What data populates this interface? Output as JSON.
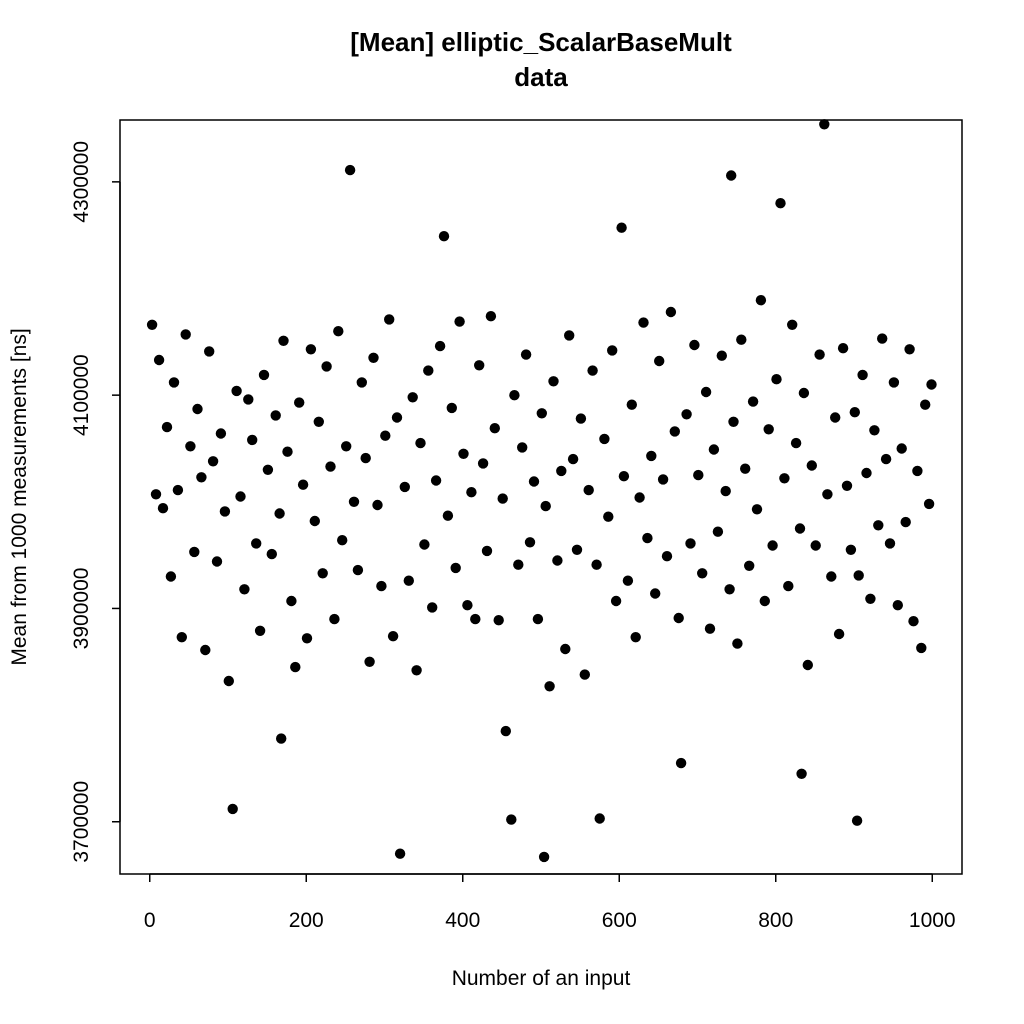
{
  "chart_data": {
    "type": "scatter",
    "title": "[Mean] elliptic_ScalarBaseMult",
    "subtitle": "data",
    "xlabel": "Number of an input",
    "ylabel": "Mean from 1000 measurements [ns]",
    "xlim": [
      -38,
      1038
    ],
    "ylim": [
      3651000,
      4358000
    ],
    "xticks": [
      0,
      200,
      400,
      600,
      800,
      1000
    ],
    "xtick_labels": [
      "0",
      "200",
      "400",
      "600",
      "800",
      "1000"
    ],
    "yticks": [
      3700000,
      3900000,
      4100000,
      4300000
    ],
    "ytick_labels": [
      "3700000",
      "3900000",
      "4100000",
      "4300000"
    ],
    "grid": false,
    "legend": "none",
    "point_color": "#000000",
    "notable_points": [
      [
        256,
        4311000
      ],
      [
        504,
        3667000
      ],
      [
        862,
        4354000
      ],
      [
        904,
        3701000
      ],
      [
        743,
        4306000
      ],
      [
        806,
        4280000
      ],
      [
        603,
        4257000
      ],
      [
        376,
        4249000
      ],
      [
        320,
        3670000
      ],
      [
        106,
        3712000
      ],
      [
        462,
        3702000
      ],
      [
        575,
        3703000
      ],
      [
        168,
        3778000
      ],
      [
        455,
        3785000
      ],
      [
        833,
        3745000
      ],
      [
        679,
        3755000
      ]
    ],
    "series": [
      {
        "points": [
          [
            3,
            4166000
          ],
          [
            8,
            4007000
          ],
          [
            12,
            4133000
          ],
          [
            17,
            3994000
          ],
          [
            22,
            4070000
          ],
          [
            27,
            3930000
          ],
          [
            31,
            4112000
          ],
          [
            36,
            4011000
          ],
          [
            41,
            3873000
          ],
          [
            46,
            4157000
          ],
          [
            52,
            4052000
          ],
          [
            57,
            3953000
          ],
          [
            61,
            4087000
          ],
          [
            66,
            4023000
          ],
          [
            71,
            3861000
          ],
          [
            76,
            4141000
          ],
          [
            81,
            4038000
          ],
          [
            86,
            3944000
          ],
          [
            91,
            4064000
          ],
          [
            96,
            3991000
          ],
          [
            101,
            3832000
          ],
          [
            111,
            4104000
          ],
          [
            116,
            4005000
          ],
          [
            121,
            3918000
          ],
          [
            126,
            4096000
          ],
          [
            131,
            4058000
          ],
          [
            136,
            3961000
          ],
          [
            141,
            3879000
          ],
          [
            146,
            4119000
          ],
          [
            151,
            4030000
          ],
          [
            156,
            3951000
          ],
          [
            161,
            4081000
          ],
          [
            166,
            3989000
          ],
          [
            171,
            4151000
          ],
          [
            176,
            4047000
          ],
          [
            181,
            3907000
          ],
          [
            186,
            3845000
          ],
          [
            191,
            4093000
          ],
          [
            196,
            4016000
          ],
          [
            201,
            3872000
          ],
          [
            206,
            4143000
          ],
          [
            211,
            3982000
          ],
          [
            216,
            4075000
          ],
          [
            221,
            3933000
          ],
          [
            226,
            4127000
          ],
          [
            231,
            4033000
          ],
          [
            236,
            3890000
          ],
          [
            241,
            4160000
          ],
          [
            246,
            3964000
          ],
          [
            251,
            4052000
          ],
          [
            261,
            4000000
          ],
          [
            266,
            3936000
          ],
          [
            271,
            4112000
          ],
          [
            276,
            4041000
          ],
          [
            281,
            3850000
          ],
          [
            286,
            4135000
          ],
          [
            291,
            3997000
          ],
          [
            296,
            3921000
          ],
          [
            301,
            4062000
          ],
          [
            306,
            4171000
          ],
          [
            311,
            3874000
          ],
          [
            316,
            4079000
          ],
          [
            326,
            4014000
          ],
          [
            331,
            3926000
          ],
          [
            336,
            4098000
          ],
          [
            341,
            3842000
          ],
          [
            346,
            4055000
          ],
          [
            351,
            3960000
          ],
          [
            356,
            4123000
          ],
          [
            361,
            3901000
          ],
          [
            366,
            4020000
          ],
          [
            371,
            4146000
          ],
          [
            381,
            3987000
          ],
          [
            386,
            4088000
          ],
          [
            391,
            3938000
          ],
          [
            396,
            4169000
          ],
          [
            401,
            4045000
          ],
          [
            406,
            3903000
          ],
          [
            411,
            4009000
          ],
          [
            416,
            3890000
          ],
          [
            421,
            4128000
          ],
          [
            426,
            4036000
          ],
          [
            431,
            3954000
          ],
          [
            436,
            4174000
          ],
          [
            441,
            4069000
          ],
          [
            446,
            3889000
          ],
          [
            451,
            4003000
          ],
          [
            466,
            4100000
          ],
          [
            471,
            3941000
          ],
          [
            476,
            4051000
          ],
          [
            481,
            4138000
          ],
          [
            486,
            3962000
          ],
          [
            491,
            4019000
          ],
          [
            496,
            3890000
          ],
          [
            501,
            4083000
          ],
          [
            506,
            3996000
          ],
          [
            511,
            3827000
          ],
          [
            516,
            4113000
          ],
          [
            521,
            3945000
          ],
          [
            526,
            4029000
          ],
          [
            531,
            3862000
          ],
          [
            536,
            4156000
          ],
          [
            541,
            4040000
          ],
          [
            546,
            3955000
          ],
          [
            551,
            4078000
          ],
          [
            556,
            3838000
          ],
          [
            561,
            4011000
          ],
          [
            566,
            4123000
          ],
          [
            571,
            3941000
          ],
          [
            581,
            4059000
          ],
          [
            586,
            3986000
          ],
          [
            591,
            4142000
          ],
          [
            596,
            3907000
          ],
          [
            606,
            4024000
          ],
          [
            611,
            3926000
          ],
          [
            616,
            4091000
          ],
          [
            621,
            3873000
          ],
          [
            626,
            4004000
          ],
          [
            631,
            4168000
          ],
          [
            636,
            3966000
          ],
          [
            641,
            4043000
          ],
          [
            646,
            3914000
          ],
          [
            651,
            4132000
          ],
          [
            656,
            4021000
          ],
          [
            661,
            3949000
          ],
          [
            666,
            4178000
          ],
          [
            671,
            4066000
          ],
          [
            676,
            3891000
          ],
          [
            686,
            4082000
          ],
          [
            691,
            3961000
          ],
          [
            696,
            4147000
          ],
          [
            701,
            4025000
          ],
          [
            706,
            3933000
          ],
          [
            711,
            4103000
          ],
          [
            716,
            3881000
          ],
          [
            721,
            4049000
          ],
          [
            726,
            3972000
          ],
          [
            731,
            4137000
          ],
          [
            736,
            4010000
          ],
          [
            741,
            3918000
          ],
          [
            746,
            4075000
          ],
          [
            751,
            3867000
          ],
          [
            756,
            4152000
          ],
          [
            761,
            4031000
          ],
          [
            766,
            3940000
          ],
          [
            771,
            4094000
          ],
          [
            776,
            3993000
          ],
          [
            781,
            4189000
          ],
          [
            786,
            3907000
          ],
          [
            791,
            4068000
          ],
          [
            796,
            3959000
          ],
          [
            801,
            4115000
          ],
          [
            811,
            4022000
          ],
          [
            816,
            3921000
          ],
          [
            821,
            4166000
          ],
          [
            826,
            4055000
          ],
          [
            831,
            3975000
          ],
          [
            836,
            4102000
          ],
          [
            841,
            3847000
          ],
          [
            846,
            4034000
          ],
          [
            851,
            3959000
          ],
          [
            856,
            4138000
          ],
          [
            866,
            4007000
          ],
          [
            871,
            3930000
          ],
          [
            876,
            4079000
          ],
          [
            881,
            3876000
          ],
          [
            886,
            4144000
          ],
          [
            891,
            4015000
          ],
          [
            896,
            3955000
          ],
          [
            901,
            4084000
          ],
          [
            906,
            3931000
          ],
          [
            911,
            4119000
          ],
          [
            916,
            4027000
          ],
          [
            921,
            3909000
          ],
          [
            926,
            4067000
          ],
          [
            931,
            3978000
          ],
          [
            936,
            4153000
          ],
          [
            941,
            4040000
          ],
          [
            946,
            3961000
          ],
          [
            951,
            4112000
          ],
          [
            956,
            3903000
          ],
          [
            961,
            4050000
          ],
          [
            966,
            3981000
          ],
          [
            971,
            4143000
          ],
          [
            976,
            3888000
          ],
          [
            981,
            4029000
          ],
          [
            986,
            3863000
          ],
          [
            991,
            4091000
          ],
          [
            996,
            3998000
          ],
          [
            999,
            4110000
          ]
        ]
      }
    ]
  }
}
